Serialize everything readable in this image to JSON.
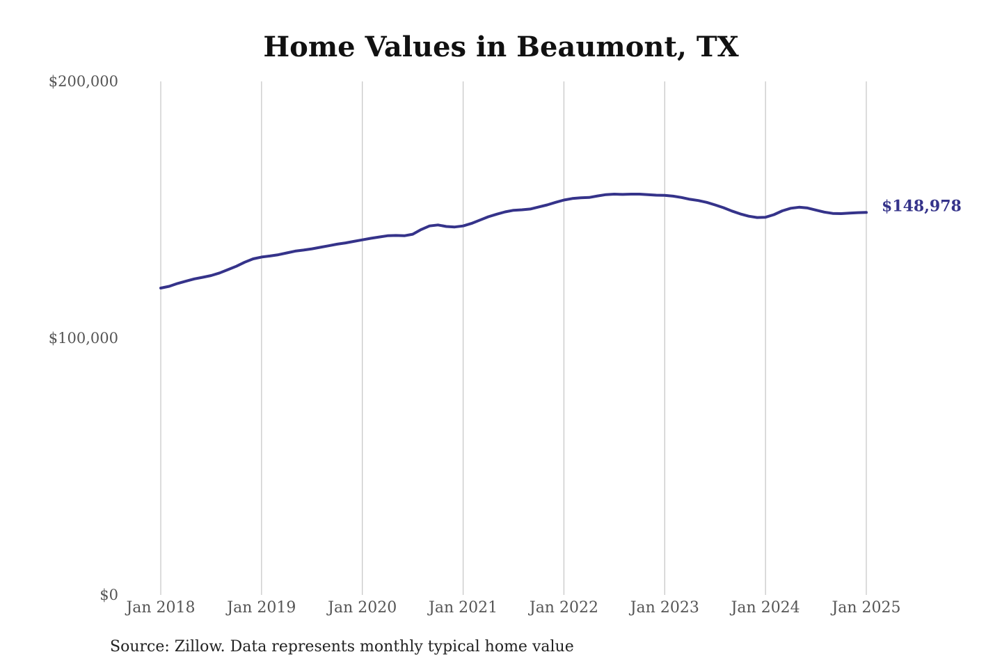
{
  "chart_data": {
    "type": "line",
    "title": "Home Values in Beaumont, TX",
    "xlabel": "",
    "ylabel": "",
    "ylim": [
      0,
      200000
    ],
    "xlim": [
      "2018-01",
      "2025-01"
    ],
    "grid": {
      "x": true,
      "y": false
    },
    "y_ticks": [
      {
        "value": 0,
        "label": "$0"
      },
      {
        "value": 100000,
        "label": "$100,000"
      },
      {
        "value": 200000,
        "label": "$200,000"
      }
    ],
    "x_ticks": [
      {
        "value": "2018-01",
        "label": "Jan 2018"
      },
      {
        "value": "2019-01",
        "label": "Jan 2019"
      },
      {
        "value": "2020-01",
        "label": "Jan 2020"
      },
      {
        "value": "2021-01",
        "label": "Jan 2021"
      },
      {
        "value": "2022-01",
        "label": "Jan 2022"
      },
      {
        "value": "2023-01",
        "label": "Jan 2023"
      },
      {
        "value": "2024-01",
        "label": "Jan 2024"
      },
      {
        "value": "2025-01",
        "label": "Jan 2025"
      }
    ],
    "series": [
      {
        "color": "#35338a",
        "end_label": "$148,978",
        "points": [
          [
            "2018-01",
            119500
          ],
          [
            "2018-02",
            120200
          ],
          [
            "2018-03",
            121300
          ],
          [
            "2018-04",
            122200
          ],
          [
            "2018-05",
            123100
          ],
          [
            "2018-06",
            123700
          ],
          [
            "2018-07",
            124400
          ],
          [
            "2018-08",
            125400
          ],
          [
            "2018-09",
            126700
          ],
          [
            "2018-10",
            128000
          ],
          [
            "2018-11",
            129600
          ],
          [
            "2018-12",
            130900
          ],
          [
            "2019-01",
            131600
          ],
          [
            "2019-02",
            132000
          ],
          [
            "2019-03",
            132500
          ],
          [
            "2019-04",
            133200
          ],
          [
            "2019-05",
            133900
          ],
          [
            "2019-06",
            134300
          ],
          [
            "2019-07",
            134800
          ],
          [
            "2019-08",
            135400
          ],
          [
            "2019-09",
            136000
          ],
          [
            "2019-10",
            136600
          ],
          [
            "2019-11",
            137100
          ],
          [
            "2019-12",
            137700
          ],
          [
            "2020-01",
            138300
          ],
          [
            "2020-02",
            138900
          ],
          [
            "2020-03",
            139400
          ],
          [
            "2020-04",
            139900
          ],
          [
            "2020-05",
            140000
          ],
          [
            "2020-06",
            139900
          ],
          [
            "2020-07",
            140500
          ],
          [
            "2020-08",
            142300
          ],
          [
            "2020-09",
            143700
          ],
          [
            "2020-10",
            144100
          ],
          [
            "2020-11",
            143500
          ],
          [
            "2020-12",
            143300
          ],
          [
            "2021-01",
            143700
          ],
          [
            "2021-02",
            144700
          ],
          [
            "2021-03",
            146000
          ],
          [
            "2021-04",
            147300
          ],
          [
            "2021-05",
            148300
          ],
          [
            "2021-06",
            149200
          ],
          [
            "2021-07",
            149800
          ],
          [
            "2021-08",
            150000
          ],
          [
            "2021-09",
            150300
          ],
          [
            "2021-10",
            151100
          ],
          [
            "2021-11",
            151900
          ],
          [
            "2021-12",
            152900
          ],
          [
            "2022-01",
            153800
          ],
          [
            "2022-02",
            154400
          ],
          [
            "2022-03",
            154700
          ],
          [
            "2022-04",
            154800
          ],
          [
            "2022-05",
            155400
          ],
          [
            "2022-06",
            155900
          ],
          [
            "2022-07",
            156100
          ],
          [
            "2022-08",
            156000
          ],
          [
            "2022-09",
            156100
          ],
          [
            "2022-10",
            156100
          ],
          [
            "2022-11",
            155900
          ],
          [
            "2022-12",
            155700
          ],
          [
            "2023-01",
            155600
          ],
          [
            "2023-02",
            155300
          ],
          [
            "2023-03",
            154800
          ],
          [
            "2023-04",
            154100
          ],
          [
            "2023-05",
            153600
          ],
          [
            "2023-06",
            152900
          ],
          [
            "2023-07",
            151900
          ],
          [
            "2023-08",
            150800
          ],
          [
            "2023-09",
            149500
          ],
          [
            "2023-10",
            148400
          ],
          [
            "2023-11",
            147500
          ],
          [
            "2023-12",
            147000
          ],
          [
            "2024-01",
            147100
          ],
          [
            "2024-02",
            148100
          ],
          [
            "2024-03",
            149600
          ],
          [
            "2024-04",
            150600
          ],
          [
            "2024-05",
            151000
          ],
          [
            "2024-06",
            150700
          ],
          [
            "2024-07",
            149900
          ],
          [
            "2024-08",
            149100
          ],
          [
            "2024-09",
            148600
          ],
          [
            "2024-10",
            148500
          ],
          [
            "2024-11",
            148700
          ],
          [
            "2024-12",
            148900
          ],
          [
            "2025-01",
            148978
          ]
        ]
      }
    ],
    "source_note": "Source: Zillow. Data represents monthly typical home value"
  }
}
